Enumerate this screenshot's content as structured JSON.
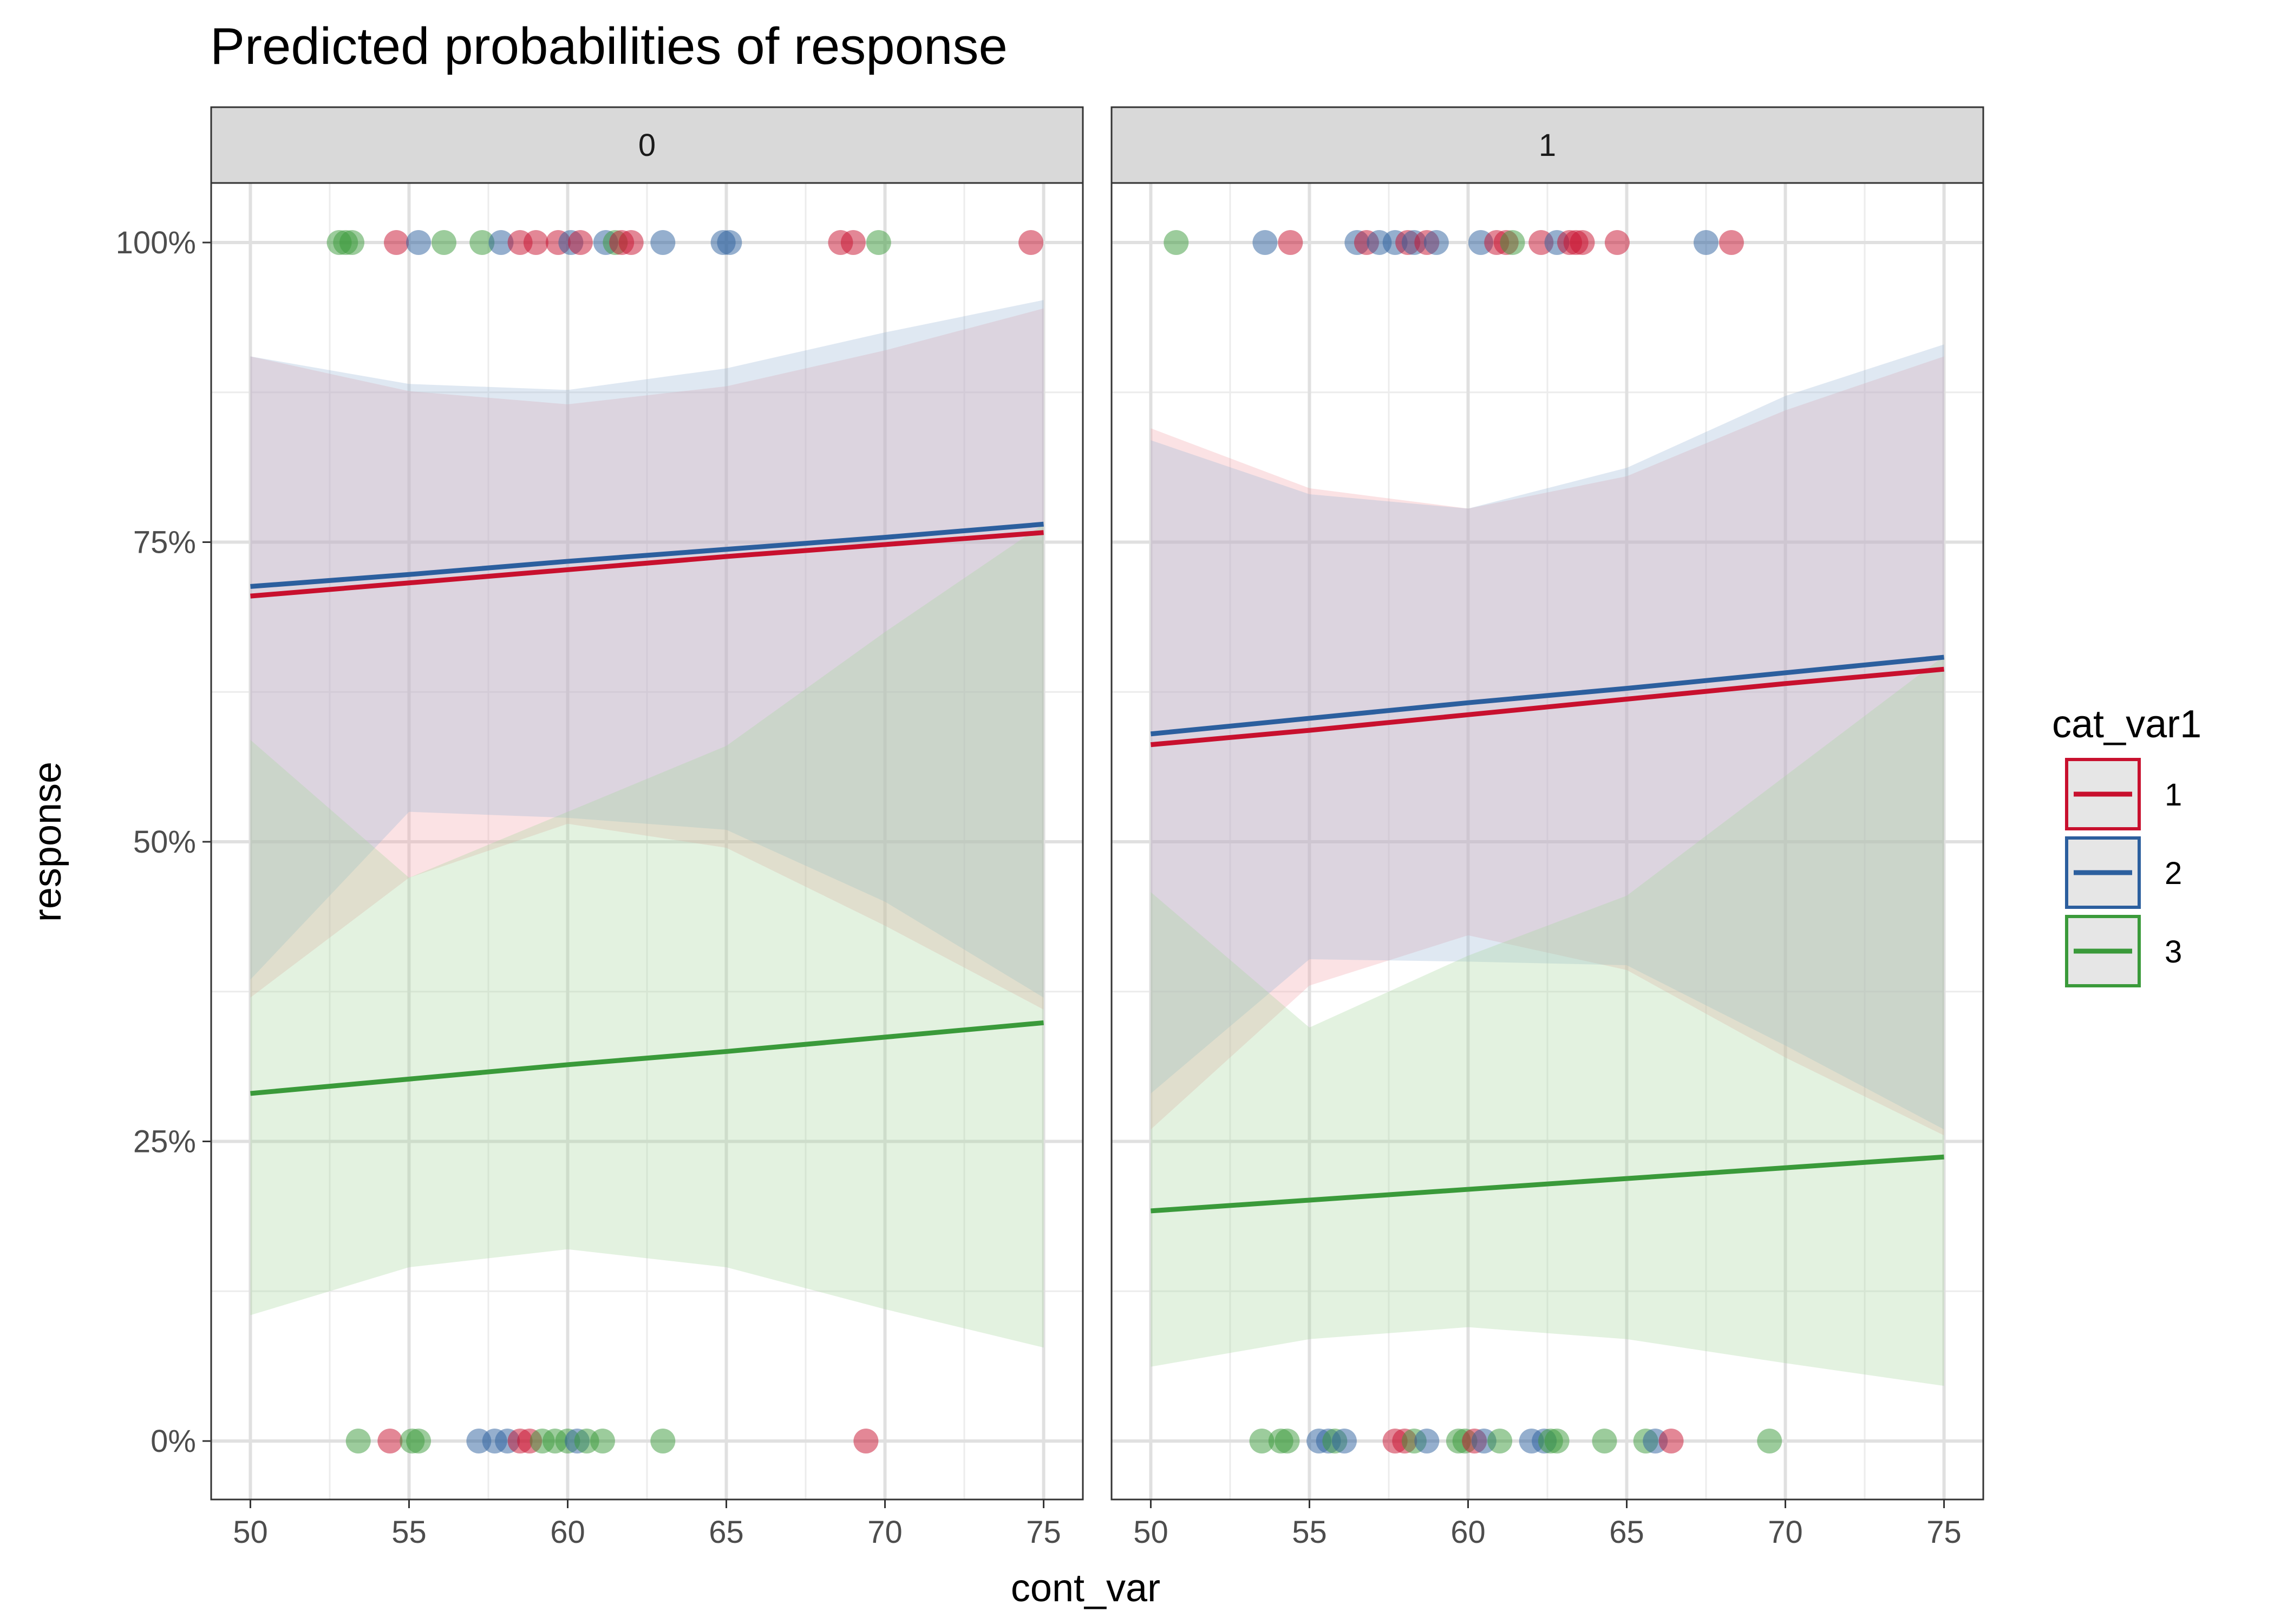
{
  "chart_data": {
    "type": "line",
    "title": "Predicted probabilities of response",
    "xlabel": "cont_var",
    "ylabel": "response",
    "xlim": [
      50,
      75
    ],
    "ylim": [
      0,
      1
    ],
    "xticks": [
      50,
      55,
      60,
      65,
      70,
      75
    ],
    "yticks": [
      0,
      0.25,
      0.5,
      0.75,
      1
    ],
    "ytick_labels": [
      "0%",
      "25%",
      "50%",
      "75%",
      "100%"
    ],
    "grid": true,
    "legend": {
      "title": "cat_var1",
      "placement": "right",
      "entries": [
        {
          "label": "1",
          "color": "#c8102e"
        },
        {
          "label": "2",
          "color": "#2c5f9e"
        },
        {
          "label": "3",
          "color": "#3a9a3a"
        }
      ]
    },
    "facets": [
      {
        "label": "0",
        "series": [
          {
            "name": "1",
            "color": "#c8102e",
            "fill": "#f4a6ab",
            "x": [
              50,
              55,
              60,
              65,
              70,
              75
            ],
            "y": [
              0.705,
              0.716,
              0.727,
              0.738,
              0.748,
              0.758
            ],
            "lower": [
              0.37,
              0.47,
              0.515,
              0.495,
              0.43,
              0.36
            ],
            "upper": [
              0.905,
              0.876,
              0.865,
              0.88,
              0.91,
              0.945
            ]
          },
          {
            "name": "2",
            "color": "#2c5f9e",
            "fill": "#9db8d8",
            "x": [
              50,
              55,
              60,
              65,
              70,
              75
            ],
            "y": [
              0.713,
              0.723,
              0.734,
              0.744,
              0.754,
              0.765
            ],
            "lower": [
              0.385,
              0.525,
              0.52,
              0.51,
              0.45,
              0.37
            ],
            "upper": [
              0.905,
              0.882,
              0.877,
              0.895,
              0.925,
              0.952
            ]
          },
          {
            "name": "3",
            "color": "#3a9a3a",
            "fill": "#a8d8a0",
            "x": [
              50,
              55,
              60,
              65,
              70,
              75
            ],
            "y": [
              0.29,
              0.302,
              0.314,
              0.325,
              0.337,
              0.349
            ],
            "lower": [
              0.105,
              0.145,
              0.16,
              0.145,
              0.11,
              0.078
            ],
            "upper": [
              0.585,
              0.47,
              0.525,
              0.58,
              0.675,
              0.765
            ]
          }
        ],
        "points": [
          {
            "x": 52.8,
            "y": 1,
            "group": "3"
          },
          {
            "x": 53.0,
            "y": 1,
            "group": "3"
          },
          {
            "x": 53.2,
            "y": 1,
            "group": "3"
          },
          {
            "x": 54.6,
            "y": 1,
            "group": "1"
          },
          {
            "x": 55.3,
            "y": 1,
            "group": "2"
          },
          {
            "x": 56.1,
            "y": 1,
            "group": "3"
          },
          {
            "x": 57.3,
            "y": 1,
            "group": "3"
          },
          {
            "x": 57.9,
            "y": 1,
            "group": "2"
          },
          {
            "x": 58.5,
            "y": 1,
            "group": "1"
          },
          {
            "x": 59.0,
            "y": 1,
            "group": "1"
          },
          {
            "x": 59.7,
            "y": 1,
            "group": "1"
          },
          {
            "x": 60.1,
            "y": 1,
            "group": "2"
          },
          {
            "x": 60.4,
            "y": 1,
            "group": "1"
          },
          {
            "x": 61.2,
            "y": 1,
            "group": "2"
          },
          {
            "x": 61.5,
            "y": 1,
            "group": "3"
          },
          {
            "x": 61.7,
            "y": 1,
            "group": "1"
          },
          {
            "x": 62.0,
            "y": 1,
            "group": "1"
          },
          {
            "x": 63.0,
            "y": 1,
            "group": "2"
          },
          {
            "x": 64.9,
            "y": 1,
            "group": "2"
          },
          {
            "x": 65.1,
            "y": 1,
            "group": "2"
          },
          {
            "x": 68.6,
            "y": 1,
            "group": "1"
          },
          {
            "x": 69.0,
            "y": 1,
            "group": "1"
          },
          {
            "x": 69.8,
            "y": 1,
            "group": "3"
          },
          {
            "x": 74.6,
            "y": 1,
            "group": "1"
          },
          {
            "x": 53.4,
            "y": 0,
            "group": "3"
          },
          {
            "x": 54.4,
            "y": 0,
            "group": "1"
          },
          {
            "x": 55.1,
            "y": 0,
            "group": "3"
          },
          {
            "x": 55.3,
            "y": 0,
            "group": "3"
          },
          {
            "x": 57.2,
            "y": 0,
            "group": "2"
          },
          {
            "x": 57.7,
            "y": 0,
            "group": "2"
          },
          {
            "x": 58.1,
            "y": 0,
            "group": "2"
          },
          {
            "x": 58.5,
            "y": 0,
            "group": "1"
          },
          {
            "x": 58.8,
            "y": 0,
            "group": "1"
          },
          {
            "x": 59.2,
            "y": 0,
            "group": "3"
          },
          {
            "x": 59.6,
            "y": 0,
            "group": "3"
          },
          {
            "x": 60.0,
            "y": 0,
            "group": "3"
          },
          {
            "x": 60.3,
            "y": 0,
            "group": "2"
          },
          {
            "x": 60.6,
            "y": 0,
            "group": "3"
          },
          {
            "x": 61.1,
            "y": 0,
            "group": "3"
          },
          {
            "x": 63.0,
            "y": 0,
            "group": "3"
          },
          {
            "x": 69.4,
            "y": 0,
            "group": "1"
          }
        ]
      },
      {
        "label": "1",
        "series": [
          {
            "name": "1",
            "color": "#c8102e",
            "fill": "#f4a6ab",
            "x": [
              50,
              55,
              60,
              65,
              70,
              75
            ],
            "y": [
              0.581,
              0.593,
              0.606,
              0.619,
              0.632,
              0.644
            ],
            "lower": [
              0.26,
              0.38,
              0.422,
              0.393,
              0.32,
              0.255
            ],
            "upper": [
              0.845,
              0.795,
              0.778,
              0.805,
              0.86,
              0.905
            ]
          },
          {
            "name": "2",
            "color": "#2c5f9e",
            "fill": "#9db8d8",
            "x": [
              50,
              55,
              60,
              65,
              70,
              75
            ],
            "y": [
              0.59,
              0.603,
              0.616,
              0.628,
              0.641,
              0.654
            ],
            "lower": [
              0.29,
              0.402,
              0.4,
              0.397,
              0.33,
              0.26
            ],
            "upper": [
              0.835,
              0.79,
              0.778,
              0.812,
              0.872,
              0.915
            ]
          },
          {
            "name": "3",
            "color": "#3a9a3a",
            "fill": "#a8d8a0",
            "x": [
              50,
              55,
              60,
              65,
              70,
              75
            ],
            "y": [
              0.192,
              0.201,
              0.21,
              0.219,
              0.228,
              0.237
            ],
            "lower": [
              0.062,
              0.085,
              0.095,
              0.085,
              0.065,
              0.046
            ],
            "upper": [
              0.458,
              0.345,
              0.405,
              0.455,
              0.555,
              0.655
            ]
          }
        ],
        "points": [
          {
            "x": 50.8,
            "y": 1,
            "group": "3"
          },
          {
            "x": 53.6,
            "y": 1,
            "group": "2"
          },
          {
            "x": 54.4,
            "y": 1,
            "group": "1"
          },
          {
            "x": 56.5,
            "y": 1,
            "group": "2"
          },
          {
            "x": 56.8,
            "y": 1,
            "group": "1"
          },
          {
            "x": 57.2,
            "y": 1,
            "group": "2"
          },
          {
            "x": 57.7,
            "y": 1,
            "group": "2"
          },
          {
            "x": 58.1,
            "y": 1,
            "group": "1"
          },
          {
            "x": 58.3,
            "y": 1,
            "group": "2"
          },
          {
            "x": 58.7,
            "y": 1,
            "group": "1"
          },
          {
            "x": 59.0,
            "y": 1,
            "group": "2"
          },
          {
            "x": 60.4,
            "y": 1,
            "group": "2"
          },
          {
            "x": 60.9,
            "y": 1,
            "group": "1"
          },
          {
            "x": 61.2,
            "y": 1,
            "group": "1"
          },
          {
            "x": 61.4,
            "y": 1,
            "group": "3"
          },
          {
            "x": 62.3,
            "y": 1,
            "group": "1"
          },
          {
            "x": 62.8,
            "y": 1,
            "group": "2"
          },
          {
            "x": 63.2,
            "y": 1,
            "group": "1"
          },
          {
            "x": 63.4,
            "y": 1,
            "group": "1"
          },
          {
            "x": 63.6,
            "y": 1,
            "group": "1"
          },
          {
            "x": 64.7,
            "y": 1,
            "group": "1"
          },
          {
            "x": 67.5,
            "y": 1,
            "group": "2"
          },
          {
            "x": 68.3,
            "y": 1,
            "group": "1"
          },
          {
            "x": 53.5,
            "y": 0,
            "group": "3"
          },
          {
            "x": 54.1,
            "y": 0,
            "group": "3"
          },
          {
            "x": 54.3,
            "y": 0,
            "group": "3"
          },
          {
            "x": 55.3,
            "y": 0,
            "group": "2"
          },
          {
            "x": 55.6,
            "y": 0,
            "group": "2"
          },
          {
            "x": 55.8,
            "y": 0,
            "group": "3"
          },
          {
            "x": 56.1,
            "y": 0,
            "group": "2"
          },
          {
            "x": 57.7,
            "y": 0,
            "group": "1"
          },
          {
            "x": 58.0,
            "y": 0,
            "group": "1"
          },
          {
            "x": 58.3,
            "y": 0,
            "group": "3"
          },
          {
            "x": 58.7,
            "y": 0,
            "group": "2"
          },
          {
            "x": 59.7,
            "y": 0,
            "group": "3"
          },
          {
            "x": 59.9,
            "y": 0,
            "group": "3"
          },
          {
            "x": 60.2,
            "y": 0,
            "group": "1"
          },
          {
            "x": 60.5,
            "y": 0,
            "group": "2"
          },
          {
            "x": 61.0,
            "y": 0,
            "group": "3"
          },
          {
            "x": 62.0,
            "y": 0,
            "group": "2"
          },
          {
            "x": 62.4,
            "y": 0,
            "group": "2"
          },
          {
            "x": 62.6,
            "y": 0,
            "group": "3"
          },
          {
            "x": 62.8,
            "y": 0,
            "group": "3"
          },
          {
            "x": 64.3,
            "y": 0,
            "group": "3"
          },
          {
            "x": 65.6,
            "y": 0,
            "group": "3"
          },
          {
            "x": 65.9,
            "y": 0,
            "group": "2"
          },
          {
            "x": 66.4,
            "y": 0,
            "group": "1"
          },
          {
            "x": 69.5,
            "y": 0,
            "group": "3"
          }
        ]
      }
    ]
  }
}
